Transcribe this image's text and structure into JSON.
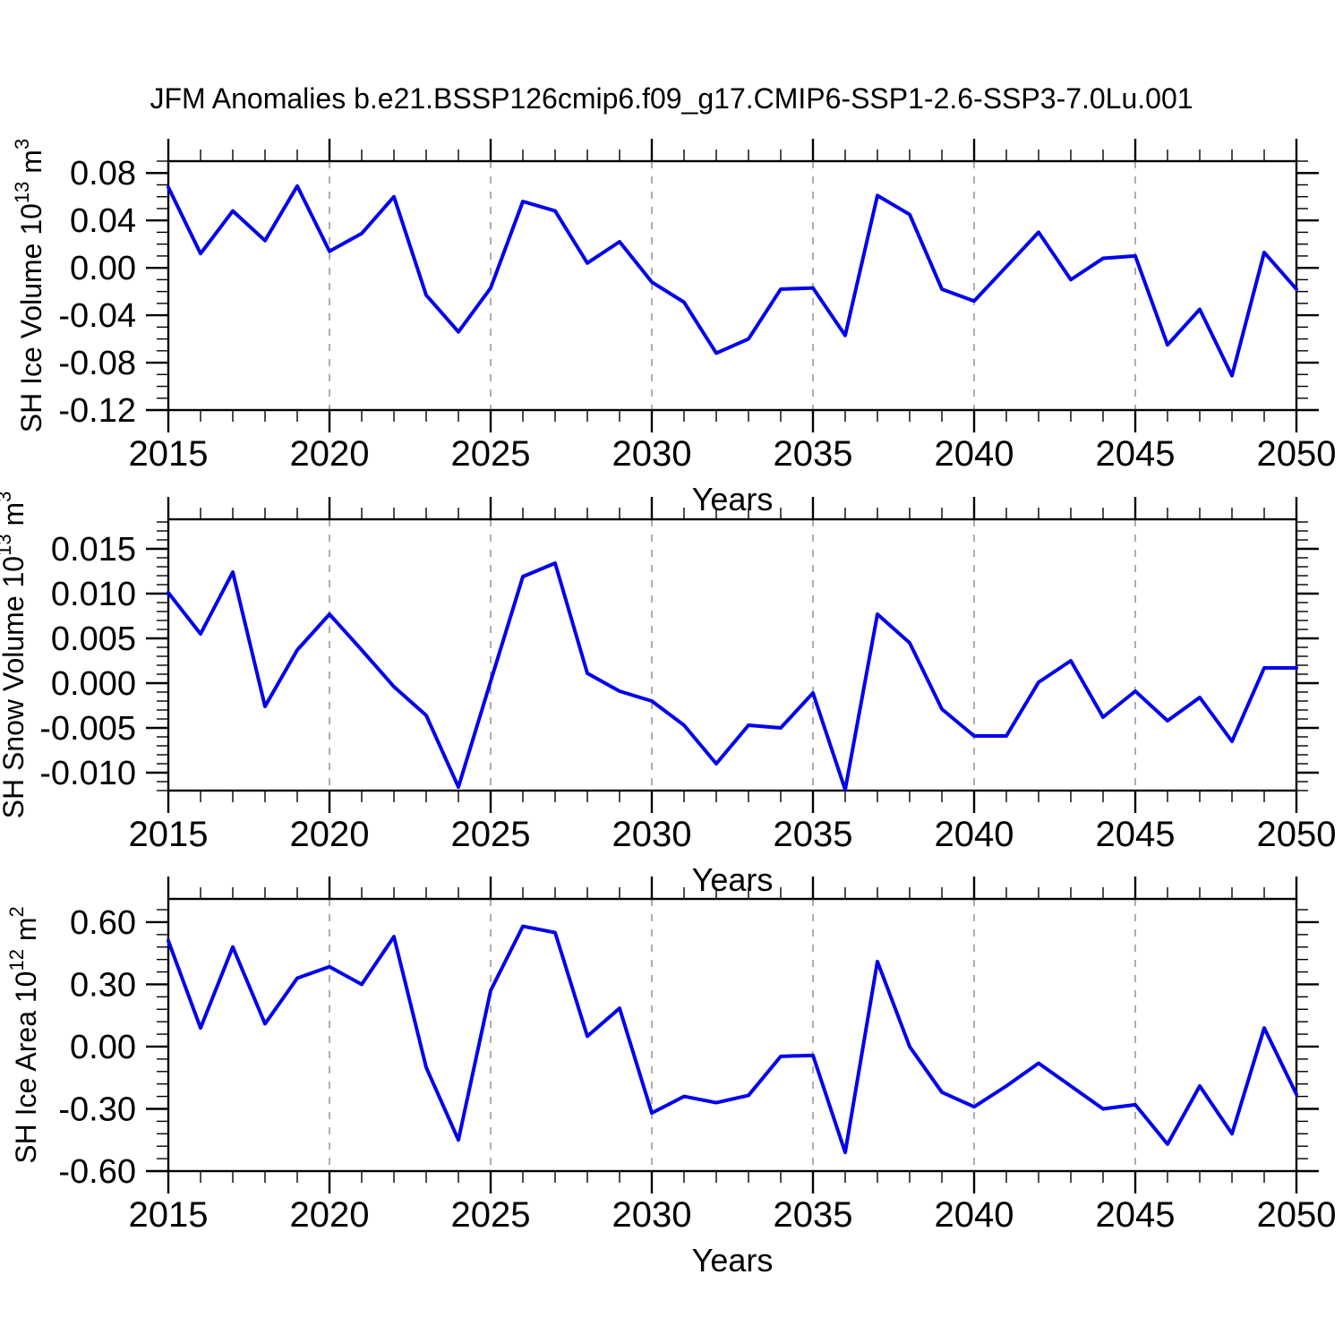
{
  "title": "JFM Anomalies b.e21.BSSP126cmip6.f09_g17.CMIP6-SSP1-2.6-SSP3-7.0Lu.001",
  "line_color": "#0000ee",
  "chart_data": [
    {
      "id": "ice-volume",
      "type": "line",
      "xlabel": "Years",
      "ylabel": "SH Ice Volume 10^13 m^3",
      "ylabel_parts": [
        [
          "SH Ice Volume 10",
          "n"
        ],
        [
          "13",
          "s"
        ],
        [
          " m",
          "n"
        ],
        [
          "3",
          "s"
        ]
      ],
      "xlim": [
        2015,
        2050
      ],
      "ylim": [
        -0.12,
        0.09
      ],
      "yticks": [
        0.08,
        0.04,
        0,
        -0.04,
        -0.08,
        -0.12
      ],
      "ytick_decimals": 2,
      "y_minor_step": 0.01,
      "x_major_ticks": [
        2015,
        2020,
        2025,
        2030,
        2035,
        2040,
        2045,
        2050
      ],
      "x_gridlines": [
        2020,
        2025,
        2030,
        2035,
        2040,
        2045
      ],
      "grid": "vertical-dashed",
      "line_color": "#0000ee",
      "x": [
        2015,
        2016,
        2017,
        2018,
        2019,
        2020,
        2021,
        2022,
        2023,
        2024,
        2025,
        2026,
        2027,
        2028,
        2029,
        2030,
        2031,
        2032,
        2033,
        2034,
        2035,
        2036,
        2037,
        2038,
        2039,
        2040,
        2041,
        2042,
        2043,
        2044,
        2045,
        2046,
        2047,
        2048,
        2049,
        2050
      ],
      "values": [
        0.068,
        0.012,
        0.048,
        0.023,
        0.069,
        0.014,
        0.029,
        0.06,
        -0.023,
        -0.054,
        -0.017,
        0.056,
        0.048,
        0.004,
        0.022,
        -0.012,
        -0.029,
        -0.072,
        -0.06,
        -0.018,
        -0.017,
        -0.057,
        0.061,
        0.045,
        -0.018,
        -0.028,
        0.001,
        0.03,
        -0.01,
        0.008,
        0.01,
        -0.065,
        -0.035,
        -0.091,
        0.013,
        -0.018
      ]
    },
    {
      "id": "snow-volume",
      "type": "line",
      "xlabel": "Years",
      "ylabel": "SH Snow Volume 10^13 m^3",
      "ylabel_parts": [
        [
          "SH Snow Volume 10",
          "n"
        ],
        [
          "13",
          "s"
        ],
        [
          " m",
          "n"
        ],
        [
          "3",
          "s"
        ]
      ],
      "xlim": [
        2015,
        2050
      ],
      "ylim": [
        -0.012,
        0.0183
      ],
      "yticks": [
        0.015,
        0.01,
        0.005,
        0,
        -0.005,
        -0.01
      ],
      "ytick_decimals": 3,
      "y_minor_step": 0.001,
      "x_major_ticks": [
        2015,
        2020,
        2025,
        2030,
        2035,
        2040,
        2045,
        2050
      ],
      "x_gridlines": [
        2020,
        2025,
        2030,
        2035,
        2040,
        2045
      ],
      "grid": "vertical-dashed",
      "line_color": "#0000ee",
      "x": [
        2015,
        2016,
        2017,
        2018,
        2019,
        2020,
        2021,
        2022,
        2023,
        2024,
        2025,
        2026,
        2027,
        2028,
        2029,
        2030,
        2031,
        2032,
        2033,
        2034,
        2035,
        2036,
        2037,
        2038,
        2039,
        2040,
        2041,
        2042,
        2043,
        2044,
        2045,
        2046,
        2047,
        2048,
        2049,
        2050
      ],
      "values": [
        0.0101,
        0.0055,
        0.0124,
        -0.0026,
        0.0037,
        0.0077,
        0.0037,
        -0.0004,
        -0.0036,
        -0.0116,
        0.0002,
        0.0119,
        0.0134,
        0.0011,
        -0.0009,
        -0.002,
        -0.0047,
        -0.009,
        -0.0047,
        -0.005,
        -0.0011,
        -0.0119,
        0.0077,
        0.0045,
        -0.0029,
        -0.0059,
        -0.0059,
        0.0001,
        0.0025,
        -0.0038,
        -0.0009,
        -0.0042,
        -0.0016,
        -0.0065,
        0.0017,
        0.0017
      ]
    },
    {
      "id": "ice-area",
      "type": "line",
      "xlabel": "Years",
      "ylabel": "SH Ice Area 10^12 m^2",
      "ylabel_parts": [
        [
          "SH Ice Area 10",
          "n"
        ],
        [
          "12",
          "s"
        ],
        [
          " m",
          "n"
        ],
        [
          "2",
          "s"
        ]
      ],
      "xlim": [
        2015,
        2050
      ],
      "ylim": [
        -0.6,
        0.712
      ],
      "yticks": [
        0.6,
        0.3,
        0,
        -0.3,
        -0.6
      ],
      "ytick_decimals": 2,
      "y_minor_step": 0.06,
      "x_major_ticks": [
        2015,
        2020,
        2025,
        2030,
        2035,
        2040,
        2045,
        2050
      ],
      "x_gridlines": [
        2020,
        2025,
        2030,
        2035,
        2040,
        2045
      ],
      "grid": "vertical-dashed",
      "line_color": "#0000ee",
      "x": [
        2015,
        2016,
        2017,
        2018,
        2019,
        2020,
        2021,
        2022,
        2023,
        2024,
        2025,
        2026,
        2027,
        2028,
        2029,
        2030,
        2031,
        2032,
        2033,
        2034,
        2035,
        2036,
        2037,
        2038,
        2039,
        2040,
        2041,
        2042,
        2043,
        2044,
        2045,
        2046,
        2047,
        2048,
        2049,
        2050
      ],
      "values": [
        0.51,
        0.09,
        0.48,
        0.11,
        0.33,
        0.385,
        0.3,
        0.53,
        -0.1,
        -0.45,
        0.27,
        0.58,
        0.55,
        0.05,
        0.185,
        -0.32,
        -0.24,
        -0.27,
        -0.235,
        -0.047,
        -0.042,
        -0.51,
        0.41,
        0.0,
        -0.22,
        -0.29,
        -0.19,
        -0.08,
        -0.19,
        -0.3,
        -0.28,
        -0.47,
        -0.19,
        -0.42,
        0.09,
        -0.23
      ]
    }
  ]
}
